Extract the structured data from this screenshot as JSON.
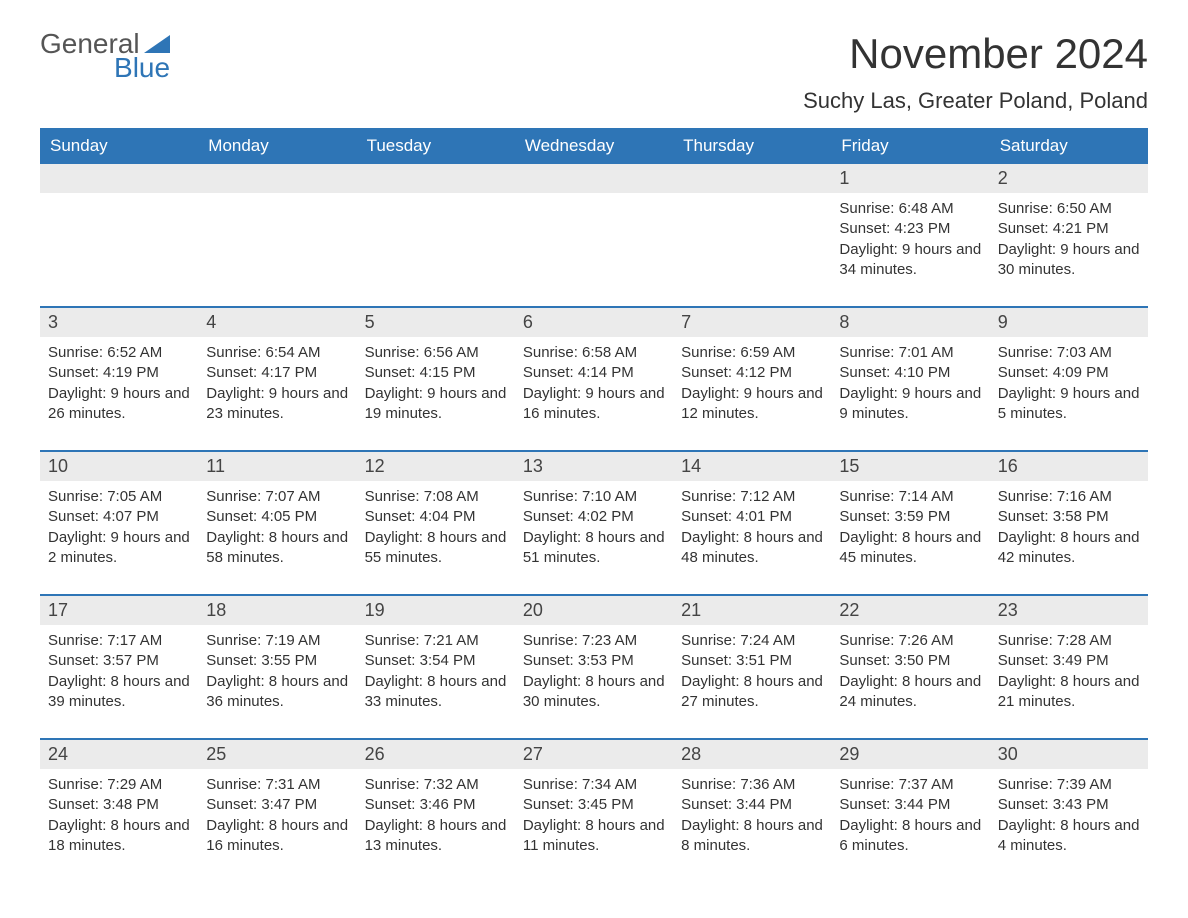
{
  "logo": {
    "text1": "General",
    "text2": "Blue",
    "color1": "#555555",
    "color2": "#2e75b6"
  },
  "title": "November 2024",
  "subtitle": "Suchy Las, Greater Poland, Poland",
  "header_bg": "#2e75b6",
  "header_fg": "#ffffff",
  "daynum_bg": "#ebebeb",
  "week_border_color": "#2e75b6",
  "days_of_week": [
    "Sunday",
    "Monday",
    "Tuesday",
    "Wednesday",
    "Thursday",
    "Friday",
    "Saturday"
  ],
  "weeks": [
    [
      null,
      null,
      null,
      null,
      null,
      {
        "n": "1",
        "sunrise": "6:48 AM",
        "sunset": "4:23 PM",
        "daylight": "9 hours and 34 minutes."
      },
      {
        "n": "2",
        "sunrise": "6:50 AM",
        "sunset": "4:21 PM",
        "daylight": "9 hours and 30 minutes."
      }
    ],
    [
      {
        "n": "3",
        "sunrise": "6:52 AM",
        "sunset": "4:19 PM",
        "daylight": "9 hours and 26 minutes."
      },
      {
        "n": "4",
        "sunrise": "6:54 AM",
        "sunset": "4:17 PM",
        "daylight": "9 hours and 23 minutes."
      },
      {
        "n": "5",
        "sunrise": "6:56 AM",
        "sunset": "4:15 PM",
        "daylight": "9 hours and 19 minutes."
      },
      {
        "n": "6",
        "sunrise": "6:58 AM",
        "sunset": "4:14 PM",
        "daylight": "9 hours and 16 minutes."
      },
      {
        "n": "7",
        "sunrise": "6:59 AM",
        "sunset": "4:12 PM",
        "daylight": "9 hours and 12 minutes."
      },
      {
        "n": "8",
        "sunrise": "7:01 AM",
        "sunset": "4:10 PM",
        "daylight": "9 hours and 9 minutes."
      },
      {
        "n": "9",
        "sunrise": "7:03 AM",
        "sunset": "4:09 PM",
        "daylight": "9 hours and 5 minutes."
      }
    ],
    [
      {
        "n": "10",
        "sunrise": "7:05 AM",
        "sunset": "4:07 PM",
        "daylight": "9 hours and 2 minutes."
      },
      {
        "n": "11",
        "sunrise": "7:07 AM",
        "sunset": "4:05 PM",
        "daylight": "8 hours and 58 minutes."
      },
      {
        "n": "12",
        "sunrise": "7:08 AM",
        "sunset": "4:04 PM",
        "daylight": "8 hours and 55 minutes."
      },
      {
        "n": "13",
        "sunrise": "7:10 AM",
        "sunset": "4:02 PM",
        "daylight": "8 hours and 51 minutes."
      },
      {
        "n": "14",
        "sunrise": "7:12 AM",
        "sunset": "4:01 PM",
        "daylight": "8 hours and 48 minutes."
      },
      {
        "n": "15",
        "sunrise": "7:14 AM",
        "sunset": "3:59 PM",
        "daylight": "8 hours and 45 minutes."
      },
      {
        "n": "16",
        "sunrise": "7:16 AM",
        "sunset": "3:58 PM",
        "daylight": "8 hours and 42 minutes."
      }
    ],
    [
      {
        "n": "17",
        "sunrise": "7:17 AM",
        "sunset": "3:57 PM",
        "daylight": "8 hours and 39 minutes."
      },
      {
        "n": "18",
        "sunrise": "7:19 AM",
        "sunset": "3:55 PM",
        "daylight": "8 hours and 36 minutes."
      },
      {
        "n": "19",
        "sunrise": "7:21 AM",
        "sunset": "3:54 PM",
        "daylight": "8 hours and 33 minutes."
      },
      {
        "n": "20",
        "sunrise": "7:23 AM",
        "sunset": "3:53 PM",
        "daylight": "8 hours and 30 minutes."
      },
      {
        "n": "21",
        "sunrise": "7:24 AM",
        "sunset": "3:51 PM",
        "daylight": "8 hours and 27 minutes."
      },
      {
        "n": "22",
        "sunrise": "7:26 AM",
        "sunset": "3:50 PM",
        "daylight": "8 hours and 24 minutes."
      },
      {
        "n": "23",
        "sunrise": "7:28 AM",
        "sunset": "3:49 PM",
        "daylight": "8 hours and 21 minutes."
      }
    ],
    [
      {
        "n": "24",
        "sunrise": "7:29 AM",
        "sunset": "3:48 PM",
        "daylight": "8 hours and 18 minutes."
      },
      {
        "n": "25",
        "sunrise": "7:31 AM",
        "sunset": "3:47 PM",
        "daylight": "8 hours and 16 minutes."
      },
      {
        "n": "26",
        "sunrise": "7:32 AM",
        "sunset": "3:46 PM",
        "daylight": "8 hours and 13 minutes."
      },
      {
        "n": "27",
        "sunrise": "7:34 AM",
        "sunset": "3:45 PM",
        "daylight": "8 hours and 11 minutes."
      },
      {
        "n": "28",
        "sunrise": "7:36 AM",
        "sunset": "3:44 PM",
        "daylight": "8 hours and 8 minutes."
      },
      {
        "n": "29",
        "sunrise": "7:37 AM",
        "sunset": "3:44 PM",
        "daylight": "8 hours and 6 minutes."
      },
      {
        "n": "30",
        "sunrise": "7:39 AM",
        "sunset": "3:43 PM",
        "daylight": "8 hours and 4 minutes."
      }
    ]
  ],
  "labels": {
    "sunrise": "Sunrise: ",
    "sunset": "Sunset: ",
    "daylight": "Daylight: "
  }
}
